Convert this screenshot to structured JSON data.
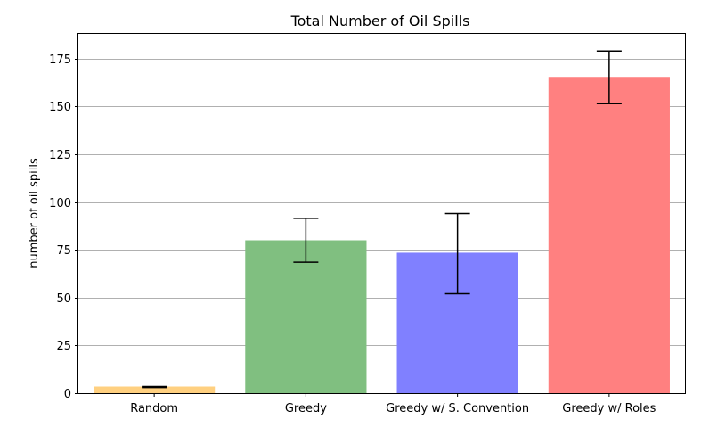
{
  "chart_data": {
    "type": "bar",
    "title": "Total Number of Oil Spills",
    "xlabel": "",
    "ylabel": "number of oil spills",
    "categories": [
      "Random",
      "Greedy",
      "Greedy w/ S. Convention",
      "Greedy w/ Roles"
    ],
    "values": [
      3.5,
      80,
      73.5,
      165.5
    ],
    "error_low": [
      3,
      68.5,
      52,
      151.5
    ],
    "error_high": [
      3.5,
      91.5,
      94,
      179
    ],
    "colors": [
      "#ffd080",
      "#80bf80",
      "#8080ff",
      "#ff8080"
    ],
    "ylim": [
      0,
      188
    ],
    "yticks": [
      0,
      25,
      50,
      75,
      100,
      125,
      150,
      175
    ],
    "grid": "y"
  }
}
